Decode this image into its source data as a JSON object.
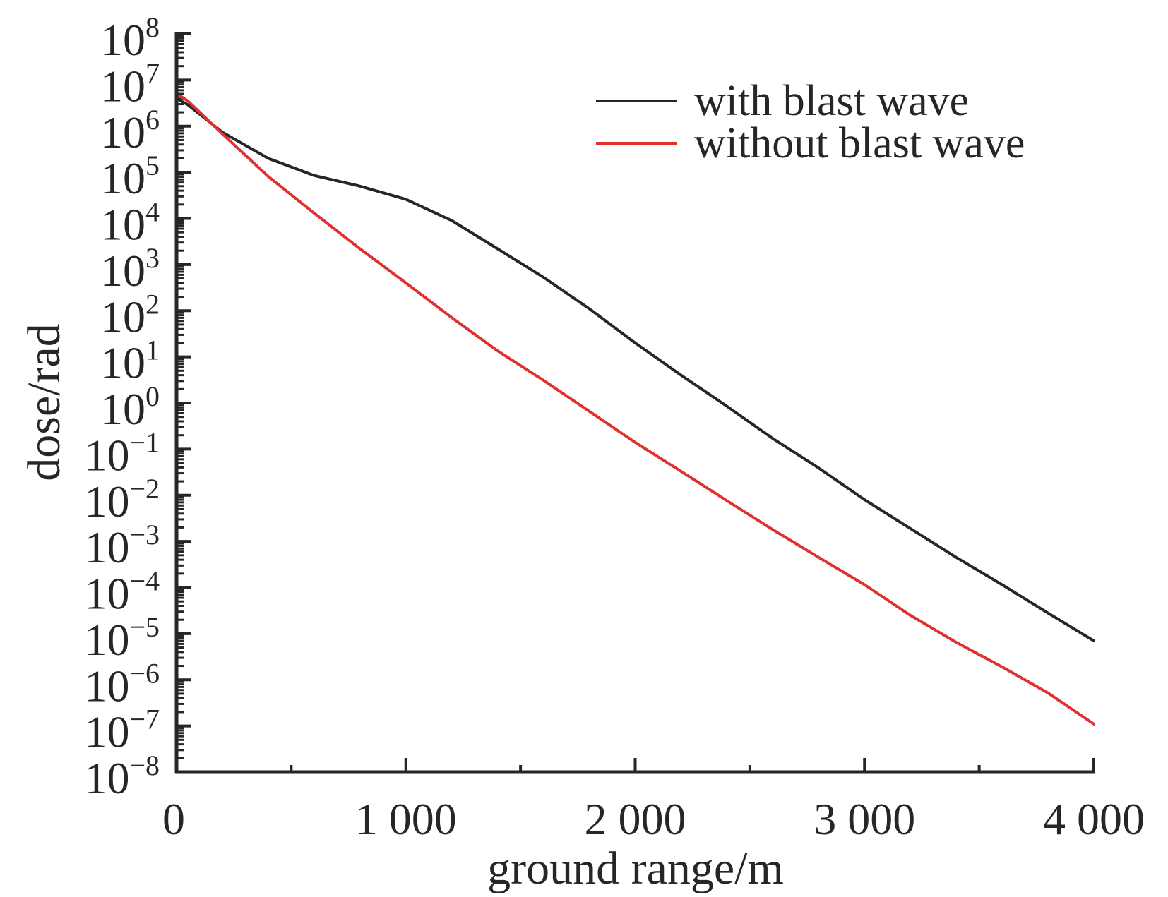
{
  "chart_data": {
    "type": "line",
    "title": "",
    "xlabel": "ground range/m",
    "ylabel": "dose/rad",
    "xlim": [
      0,
      4000
    ],
    "ylim": [
      1e-08,
      100000000.0
    ],
    "yscale": "log",
    "grid": false,
    "legend_position": "top-right",
    "x_ticks": [
      {
        "value": 0,
        "label": "0"
      },
      {
        "value": 1000,
        "label": "1 000"
      },
      {
        "value": 2000,
        "label": "2 000"
      },
      {
        "value": 3000,
        "label": "3 000"
      },
      {
        "value": 4000,
        "label": "4 000"
      }
    ],
    "x_minor_ticks": [
      500,
      1500,
      2500,
      3500
    ],
    "y_ticks": [
      {
        "exp": 8,
        "base": "10",
        "sup": "8"
      },
      {
        "exp": 7,
        "base": "10",
        "sup": "7"
      },
      {
        "exp": 6,
        "base": "10",
        "sup": "6"
      },
      {
        "exp": 5,
        "base": "10",
        "sup": "5"
      },
      {
        "exp": 4,
        "base": "10",
        "sup": "4"
      },
      {
        "exp": 3,
        "base": "10",
        "sup": "3"
      },
      {
        "exp": 2,
        "base": "10",
        "sup": "2"
      },
      {
        "exp": 1,
        "base": "10",
        "sup": "1"
      },
      {
        "exp": 0,
        "base": "10",
        "sup": "0"
      },
      {
        "exp": -1,
        "base": "10",
        "sup": "−1"
      },
      {
        "exp": -2,
        "base": "10",
        "sup": "−2"
      },
      {
        "exp": -3,
        "base": "10",
        "sup": "−3"
      },
      {
        "exp": -4,
        "base": "10",
        "sup": "−4"
      },
      {
        "exp": -5,
        "base": "10",
        "sup": "−5"
      },
      {
        "exp": -6,
        "base": "10",
        "sup": "−6"
      },
      {
        "exp": -7,
        "base": "10",
        "sup": "−7"
      },
      {
        "exp": -8,
        "base": "10",
        "sup": "−8"
      }
    ],
    "series": [
      {
        "name": "with blast wave",
        "color": "#262626",
        "x": [
          0,
          50,
          200,
          400,
          600,
          800,
          1000,
          1200,
          1400,
          1600,
          1800,
          2000,
          2200,
          2400,
          2600,
          2800,
          3000,
          3200,
          3400,
          3600,
          3800,
          4000
        ],
        "y": [
          4000000.0,
          2900000.0,
          740000.0,
          200000.0,
          85000.0,
          50000.0,
          26000.0,
          9000.0,
          2200.0,
          530.0,
          110.0,
          20.0,
          4.0,
          0.85,
          0.17,
          0.039,
          0.008,
          0.0019,
          0.00045,
          0.000115,
          2.8e-05,
          7e-06
        ]
      },
      {
        "name": "without blast wave",
        "color": "#e03131",
        "x": [
          0,
          20,
          50,
          200,
          400,
          600,
          800,
          1000,
          1200,
          1400,
          1600,
          1800,
          2000,
          2200,
          2400,
          2600,
          2800,
          3000,
          3200,
          3400,
          3600,
          3800,
          4000
        ],
        "y": [
          4400000.0,
          4400000.0,
          3500000.0,
          680000.0,
          81000.0,
          13000.0,
          2200.0,
          400.0,
          71.0,
          13.5,
          3.1,
          0.66,
          0.14,
          0.033,
          0.0076,
          0.0018,
          0.00045,
          0.000115,
          2.5e-05,
          6.5e-06,
          1.9e-06,
          5.2e-07,
          1.1e-07
        ]
      }
    ]
  }
}
